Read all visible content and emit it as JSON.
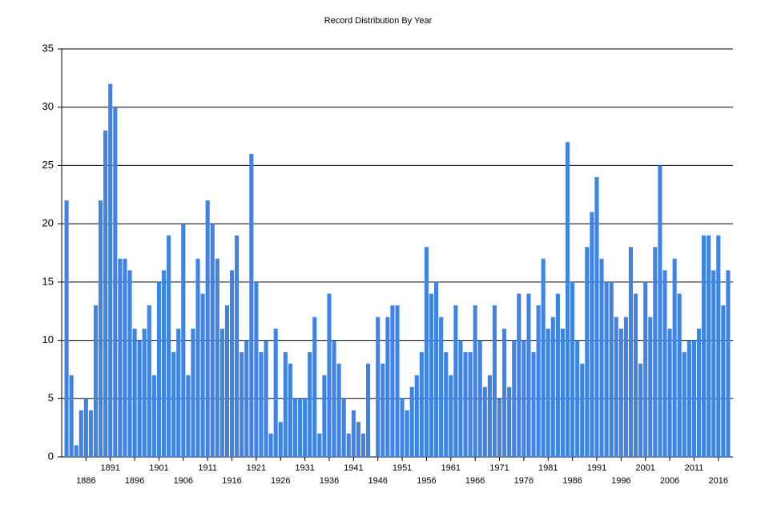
{
  "chart_data": {
    "type": "bar",
    "title": "Record Distribution By Year",
    "categories": [
      null,
      null,
      null,
      null,
      "1886",
      null,
      null,
      null,
      null,
      "1891",
      null,
      null,
      null,
      null,
      "1896",
      null,
      null,
      null,
      null,
      "1901",
      null,
      null,
      null,
      null,
      "1906",
      null,
      null,
      null,
      null,
      "1911",
      null,
      null,
      null,
      null,
      "1916",
      null,
      null,
      null,
      null,
      "1921",
      null,
      null,
      null,
      null,
      "1926",
      null,
      null,
      null,
      null,
      "1931",
      null,
      null,
      null,
      null,
      "1936",
      null,
      null,
      null,
      null,
      "1941",
      null,
      null,
      null,
      null,
      "1946",
      null,
      null,
      null,
      null,
      "1951",
      null,
      null,
      null,
      null,
      "1956",
      null,
      null,
      null,
      null,
      "1961",
      null,
      null,
      null,
      null,
      "1966",
      null,
      null,
      null,
      null,
      "1971",
      null,
      null,
      null,
      null,
      "1976",
      null,
      null,
      null,
      null,
      "1981",
      null,
      null,
      null,
      null,
      "1986",
      null,
      null,
      null,
      null,
      "1991",
      null,
      null,
      null,
      null,
      "1996",
      null,
      null,
      null,
      null,
      "2001",
      null,
      null,
      null,
      null,
      "2006",
      null,
      null,
      null,
      null,
      "2011",
      null,
      null,
      null,
      null,
      "2016",
      null,
      null
    ],
    "values": [
      22,
      7,
      1,
      4,
      5,
      4,
      13,
      22,
      28,
      32,
      30,
      17,
      17,
      16,
      11,
      10,
      11,
      13,
      7,
      15,
      16,
      19,
      9,
      11,
      20,
      7,
      11,
      17,
      14,
      22,
      20,
      17,
      11,
      13,
      16,
      19,
      9,
      10,
      26,
      15,
      9,
      10,
      2,
      11,
      3,
      9,
      8,
      5,
      5,
      5,
      9,
      12,
      2,
      7,
      14,
      10,
      8,
      5,
      2,
      4,
      3,
      2,
      8,
      0,
      12,
      8,
      12,
      13,
      13,
      5,
      4,
      6,
      7,
      9,
      18,
      14,
      15,
      12,
      9,
      7,
      13,
      10,
      9,
      9,
      13,
      10,
      6,
      7,
      13,
      5,
      11,
      6,
      10,
      14,
      10,
      14,
      9,
      13,
      17,
      11,
      12,
      14,
      11,
      27,
      15,
      10,
      8,
      18,
      21,
      24,
      17,
      15,
      15,
      12,
      11,
      12,
      18,
      14,
      8,
      15,
      12,
      18,
      25,
      16,
      11,
      17,
      14,
      9,
      10,
      10,
      11,
      19,
      19,
      16,
      19,
      13,
      16
    ],
    "color": "#3f84e5",
    "ylim": [
      0,
      35
    ],
    "yticks": [
      0,
      5,
      10,
      15,
      20,
      25,
      30,
      35
    ],
    "grid": true
  }
}
